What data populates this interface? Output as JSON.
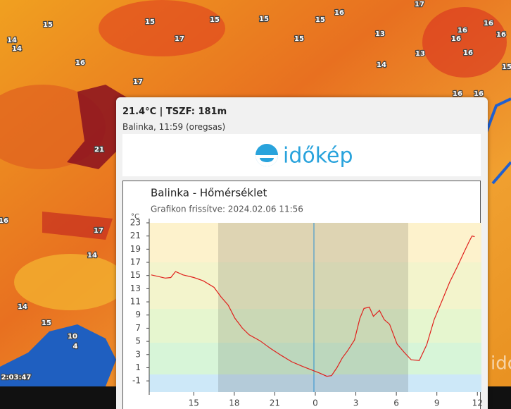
{
  "map": {
    "labels": [
      "15",
      "14",
      "14",
      "16",
      "17",
      "15",
      "17",
      "15",
      "15",
      "15",
      "16",
      "15",
      "13",
      "14",
      "13",
      "17",
      "16",
      "16",
      "16",
      "16",
      "16",
      "15",
      "16",
      "16",
      "21",
      "16",
      "17",
      "14",
      "14",
      "15",
      "10",
      "4",
      "2:03:47"
    ]
  },
  "popup": {
    "title": "21.4°C | TSZF: 181m",
    "subtitle": "Balinka, 11:59 (oregsas)",
    "logo": "időkép"
  },
  "watermark": "időkép",
  "chart_data": {
    "type": "line",
    "title": "Balinka - Hőmérséklet",
    "subtitle": "Grafikon frissítve: 2024.02.06 11:56",
    "y_label": "°C",
    "x": [
      11.85,
      12.9,
      13.3,
      13.65,
      14.2,
      15,
      15.7,
      16.5,
      17,
      17.55,
      18.05,
      18.6,
      19.1,
      19.9,
      20.7,
      21.45,
      22.25,
      23.05,
      23.8,
      24.3,
      24.85,
      25.2,
      25.6,
      26,
      26.4,
      26.9,
      27.3,
      27.6,
      28,
      28.3,
      28.75,
      29.1,
      29.5,
      30.05,
      30.6,
      31.1,
      31.7,
      32.25,
      32.8,
      33.45,
      33.95,
      34.5,
      35,
      35.4,
      35.6,
      35.8
    ],
    "series": [
      {
        "name": "Hőmérséklet",
        "color": "#e0201c",
        "values": [
          15.1,
          14.6,
          14.7,
          15.6,
          15.1,
          14.7,
          14.2,
          13.2,
          11.8,
          10.5,
          8.5,
          7,
          6,
          5.1,
          3.9,
          2.9,
          1.9,
          1.2,
          0.6,
          0.2,
          -0.3,
          -0.2,
          1,
          2.5,
          3.6,
          5.2,
          8.5,
          10,
          10.2,
          8.8,
          9.7,
          8.3,
          7.6,
          4.6,
          3.3,
          2.2,
          2.1,
          4.5,
          8.3,
          11.5,
          14,
          16.3,
          18.5,
          20.2,
          21,
          20.9
        ]
      }
    ],
    "xlim": [
      11.7,
      36.3
    ],
    "xticks": [
      15,
      18,
      21,
      {
        "value": 24,
        "label": "0"
      },
      {
        "value": 27,
        "label": "3"
      },
      {
        "value": 30,
        "label": "6"
      },
      {
        "value": 33,
        "label": "9"
      },
      {
        "value": 36,
        "label": "12"
      }
    ],
    "ylim": [
      -2.7,
      23
    ],
    "yticks": [
      -1,
      1,
      3,
      5,
      7,
      9,
      11,
      13,
      15,
      17,
      19,
      21,
      23
    ]
  }
}
